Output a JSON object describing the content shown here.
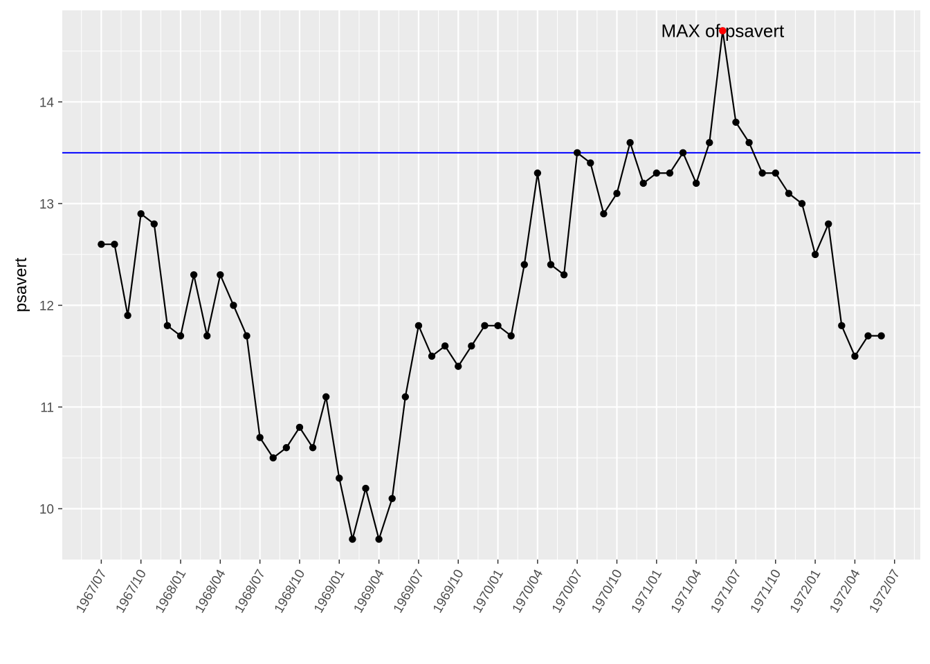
{
  "chart_data": {
    "type": "line",
    "title": "",
    "xlabel": "",
    "ylabel": "psavert",
    "x": [
      "1967/07",
      "1967/08",
      "1967/09",
      "1967/10",
      "1967/11",
      "1967/12",
      "1968/01",
      "1968/02",
      "1968/03",
      "1968/04",
      "1968/05",
      "1968/06",
      "1968/07",
      "1968/08",
      "1968/09",
      "1968/10",
      "1968/11",
      "1968/12",
      "1969/01",
      "1969/02",
      "1969/03",
      "1969/04",
      "1969/05",
      "1969/06",
      "1969/07",
      "1969/08",
      "1969/09",
      "1969/10",
      "1969/11",
      "1969/12",
      "1970/01",
      "1970/02",
      "1970/03",
      "1970/04",
      "1970/05",
      "1970/06",
      "1970/07",
      "1970/08",
      "1970/09",
      "1970/10",
      "1970/11",
      "1970/12",
      "1971/01",
      "1971/02",
      "1971/03",
      "1971/04",
      "1971/05",
      "1971/06",
      "1971/07",
      "1971/08",
      "1971/09",
      "1971/10",
      "1971/11",
      "1971/12",
      "1972/01",
      "1972/02",
      "1972/03",
      "1972/04",
      "1972/05",
      "1972/06"
    ],
    "series": [
      {
        "values": [
          12.6,
          12.6,
          11.9,
          12.9,
          12.8,
          11.8,
          11.7,
          12.3,
          11.7,
          12.3,
          12.0,
          11.7,
          10.7,
          10.5,
          10.6,
          10.8,
          10.6,
          11.1,
          10.3,
          9.7,
          10.2,
          9.7,
          10.1,
          11.1,
          11.8,
          11.5,
          11.6,
          11.4,
          11.6,
          11.8,
          11.8,
          11.7,
          12.4,
          13.3,
          12.4,
          12.3,
          13.5,
          13.4,
          12.9,
          13.1,
          13.6,
          13.2,
          13.3,
          13.3,
          13.5,
          13.2,
          13.6,
          14.7,
          13.8,
          13.6,
          13.3,
          13.3,
          13.1,
          13.0,
          12.5,
          12.8,
          11.8,
          11.5,
          11.7,
          11.7
        ],
        "color": "#000000"
      }
    ],
    "x_ticks": [
      "1967/07",
      "1967/10",
      "1968/01",
      "1968/04",
      "1968/07",
      "1968/10",
      "1969/01",
      "1969/04",
      "1969/07",
      "1969/10",
      "1970/01",
      "1970/04",
      "1970/07",
      "1970/10",
      "1971/01",
      "1971/04",
      "1971/07",
      "1971/10",
      "1972/01",
      "1972/04",
      "1972/07"
    ],
    "y_ticks": [
      10,
      11,
      12,
      13,
      14
    ],
    "ylim": [
      9.5,
      14.9
    ],
    "hline": {
      "y": 13.5,
      "color": "#0000ff"
    },
    "highlight": {
      "x": "1971/06",
      "y": 14.7,
      "color": "#ff0000",
      "label": "MAX of psavert"
    },
    "grid": true,
    "legend": "none",
    "panel_color": "#ebebeb",
    "grid_color": "#ffffff"
  }
}
